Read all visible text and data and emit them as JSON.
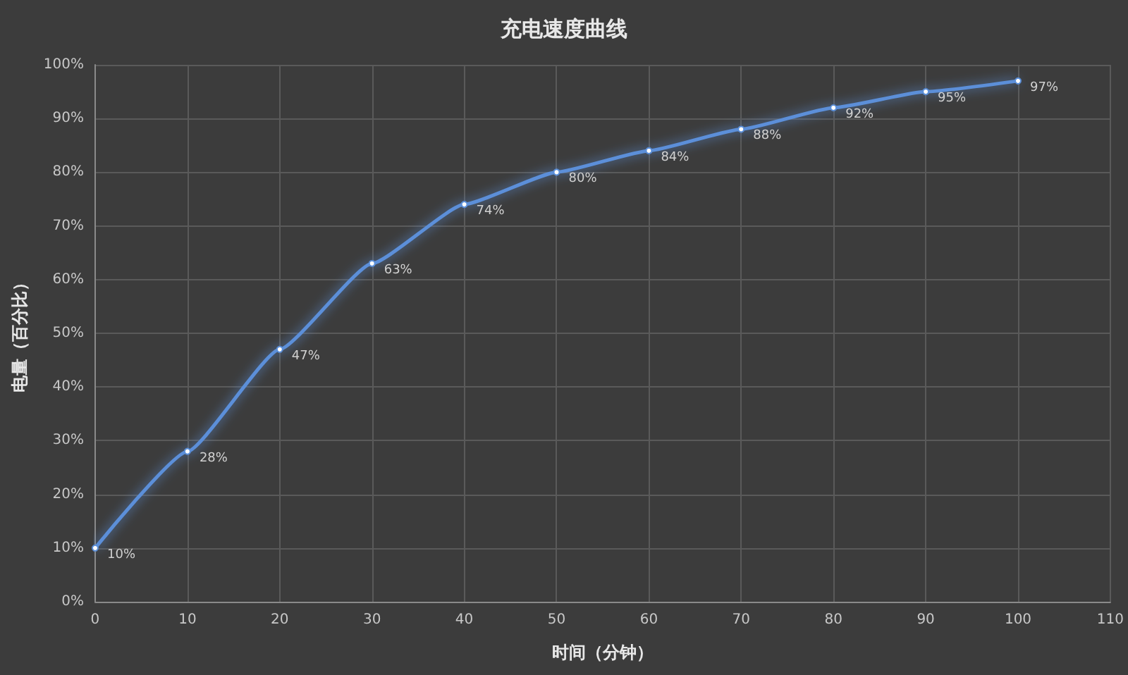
{
  "chart_data": {
    "type": "line",
    "title": "充电速度曲线",
    "xlabel": "时间（分钟）",
    "ylabel": "电量（百分比）",
    "x": [
      0,
      10,
      20,
      30,
      40,
      50,
      60,
      70,
      80,
      90,
      100
    ],
    "series": [
      {
        "color": "#5b8fd9",
        "values": [
          10,
          28,
          47,
          63,
          74,
          80,
          84,
          88,
          92,
          95,
          97
        ],
        "value_labels": [
          "10%",
          "28%",
          "47%",
          "63%",
          "74%",
          "80%",
          "84%",
          "88%",
          "92%",
          "95%",
          "97%"
        ]
      }
    ],
    "xlim": [
      0,
      110
    ],
    "xticks": [
      0,
      10,
      20,
      30,
      40,
      50,
      60,
      70,
      80,
      90,
      100,
      110
    ],
    "ylim": [
      0,
      100
    ],
    "yticks": [
      {
        "value": 0,
        "label": "0%"
      },
      {
        "value": 10,
        "label": "10%"
      },
      {
        "value": 20,
        "label": "20%"
      },
      {
        "value": 30,
        "label": "30%"
      },
      {
        "value": 40,
        "label": "40%"
      },
      {
        "value": 50,
        "label": "50%"
      },
      {
        "value": 60,
        "label": "60%"
      },
      {
        "value": 70,
        "label": "70%"
      },
      {
        "value": 80,
        "label": "80%"
      },
      {
        "value": 90,
        "label": "90%"
      },
      {
        "value": 100,
        "label": "100%"
      }
    ],
    "grid": true,
    "marker": "circle",
    "line_style": "solid"
  }
}
